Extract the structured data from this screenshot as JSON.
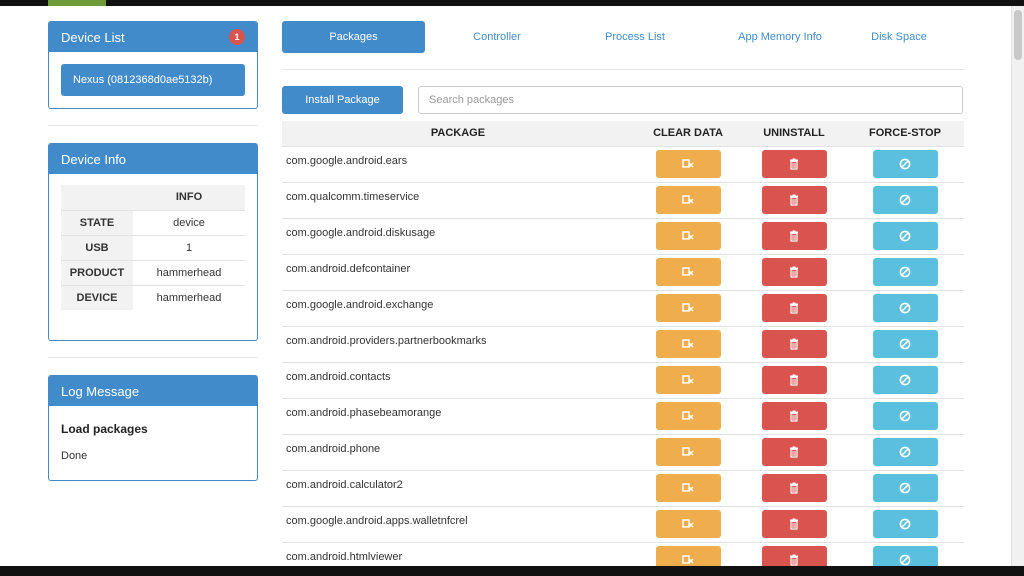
{
  "sidebar": {
    "device_list": {
      "title": "Device List",
      "badge": "1",
      "device": "Nexus (0812368d0ae5132b)"
    },
    "device_info": {
      "title": "Device Info",
      "header": "INFO",
      "rows": [
        {
          "key": "STATE",
          "value": "device"
        },
        {
          "key": "USB",
          "value": "1"
        },
        {
          "key": "PRODUCT",
          "value": "hammerhead"
        },
        {
          "key": "DEVICE",
          "value": "hammerhead"
        }
      ]
    },
    "log": {
      "title": "Log Message",
      "heading": "Load packages",
      "text": "Done"
    }
  },
  "nav": {
    "tabs": [
      {
        "label": "Packages",
        "active": true
      },
      {
        "label": "Controller",
        "active": false
      },
      {
        "label": "Process List",
        "active": false
      },
      {
        "label": "App Memory Info",
        "active": false
      },
      {
        "label": "Disk Space",
        "active": false
      }
    ]
  },
  "toolbar": {
    "install_label": "Install Package",
    "search_placeholder": "Search packages",
    "search_value": ""
  },
  "table": {
    "headers": [
      "PACKAGE",
      "CLEAR DATA",
      "UNINSTALL",
      "FORCE-STOP"
    ],
    "rows": [
      "com.google.android.ears",
      "com.qualcomm.timeservice",
      "com.google.android.diskusage",
      "com.android.defcontainer",
      "com.google.android.exchange",
      "com.android.providers.partnerbookmarks",
      "com.android.contacts",
      "com.android.phasebeamorange",
      "com.android.phone",
      "com.android.calculator2",
      "com.google.android.apps.walletnfcrel",
      "com.android.htmlviewer"
    ]
  },
  "colors": {
    "primary": "#428bca",
    "warning": "#f0ad4e",
    "danger": "#d9534f",
    "info": "#5bc0de"
  },
  "icons": {
    "clear_data": "broom-icon",
    "uninstall": "trash-icon",
    "force_stop": "ban-icon"
  }
}
